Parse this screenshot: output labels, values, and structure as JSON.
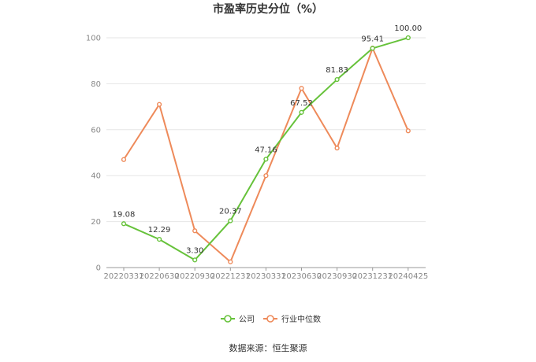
{
  "chart_data": {
    "type": "line",
    "title": "市盈率历史分位（%）",
    "categories": [
      "20220331",
      "20220630",
      "20220930",
      "20221231",
      "20230331",
      "20230630",
      "20230930",
      "20231231",
      "20240425"
    ],
    "series": [
      {
        "name": "公司",
        "color": "#66c23a",
        "values": [
          19.08,
          12.29,
          3.3,
          20.37,
          47.16,
          67.52,
          81.83,
          95.41,
          100.0
        ],
        "labels": [
          "19.08",
          "12.29",
          "3.30",
          "20.37",
          "47.16",
          "67.52",
          "81.83",
          "95.41",
          "100.00"
        ]
      },
      {
        "name": "行业中位数",
        "color": "#ee8a5a",
        "values": [
          47,
          71,
          16,
          2.5,
          40,
          78,
          52,
          95.5,
          59.5
        ]
      }
    ],
    "yticks": [
      "0",
      "20",
      "40",
      "60",
      "80",
      "100"
    ],
    "ylim": [
      0,
      100
    ],
    "grid": true,
    "legend": "bottom"
  },
  "source": "数据来源：恒生聚源"
}
